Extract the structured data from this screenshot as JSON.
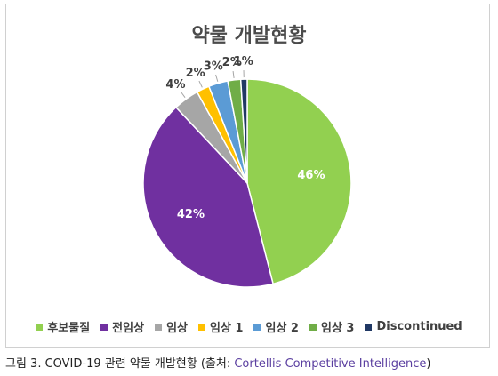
{
  "chart_data": {
    "type": "pie",
    "title": "약물 개발현황",
    "categories": [
      "후보물질",
      "전임상",
      "임상",
      "임상 1",
      "임상 2",
      "임상 3",
      "Discontinued"
    ],
    "values": [
      46,
      42,
      4,
      2,
      3,
      2,
      1
    ],
    "value_labels": [
      "46%",
      "42%",
      "4%",
      "2%",
      "3%",
      "2%",
      "1%"
    ],
    "colors": [
      "#92d050",
      "#7030a0",
      "#a6a6a6",
      "#ffc000",
      "#5b9bd5",
      "#70ad47",
      "#203864"
    ],
    "legend_position": "bottom"
  },
  "caption": {
    "prefix": "그림 3. COVID-19 관련 약물 개발현황 (출처: ",
    "source": "Cortellis Competitive Intelligence",
    "suffix": ")"
  }
}
